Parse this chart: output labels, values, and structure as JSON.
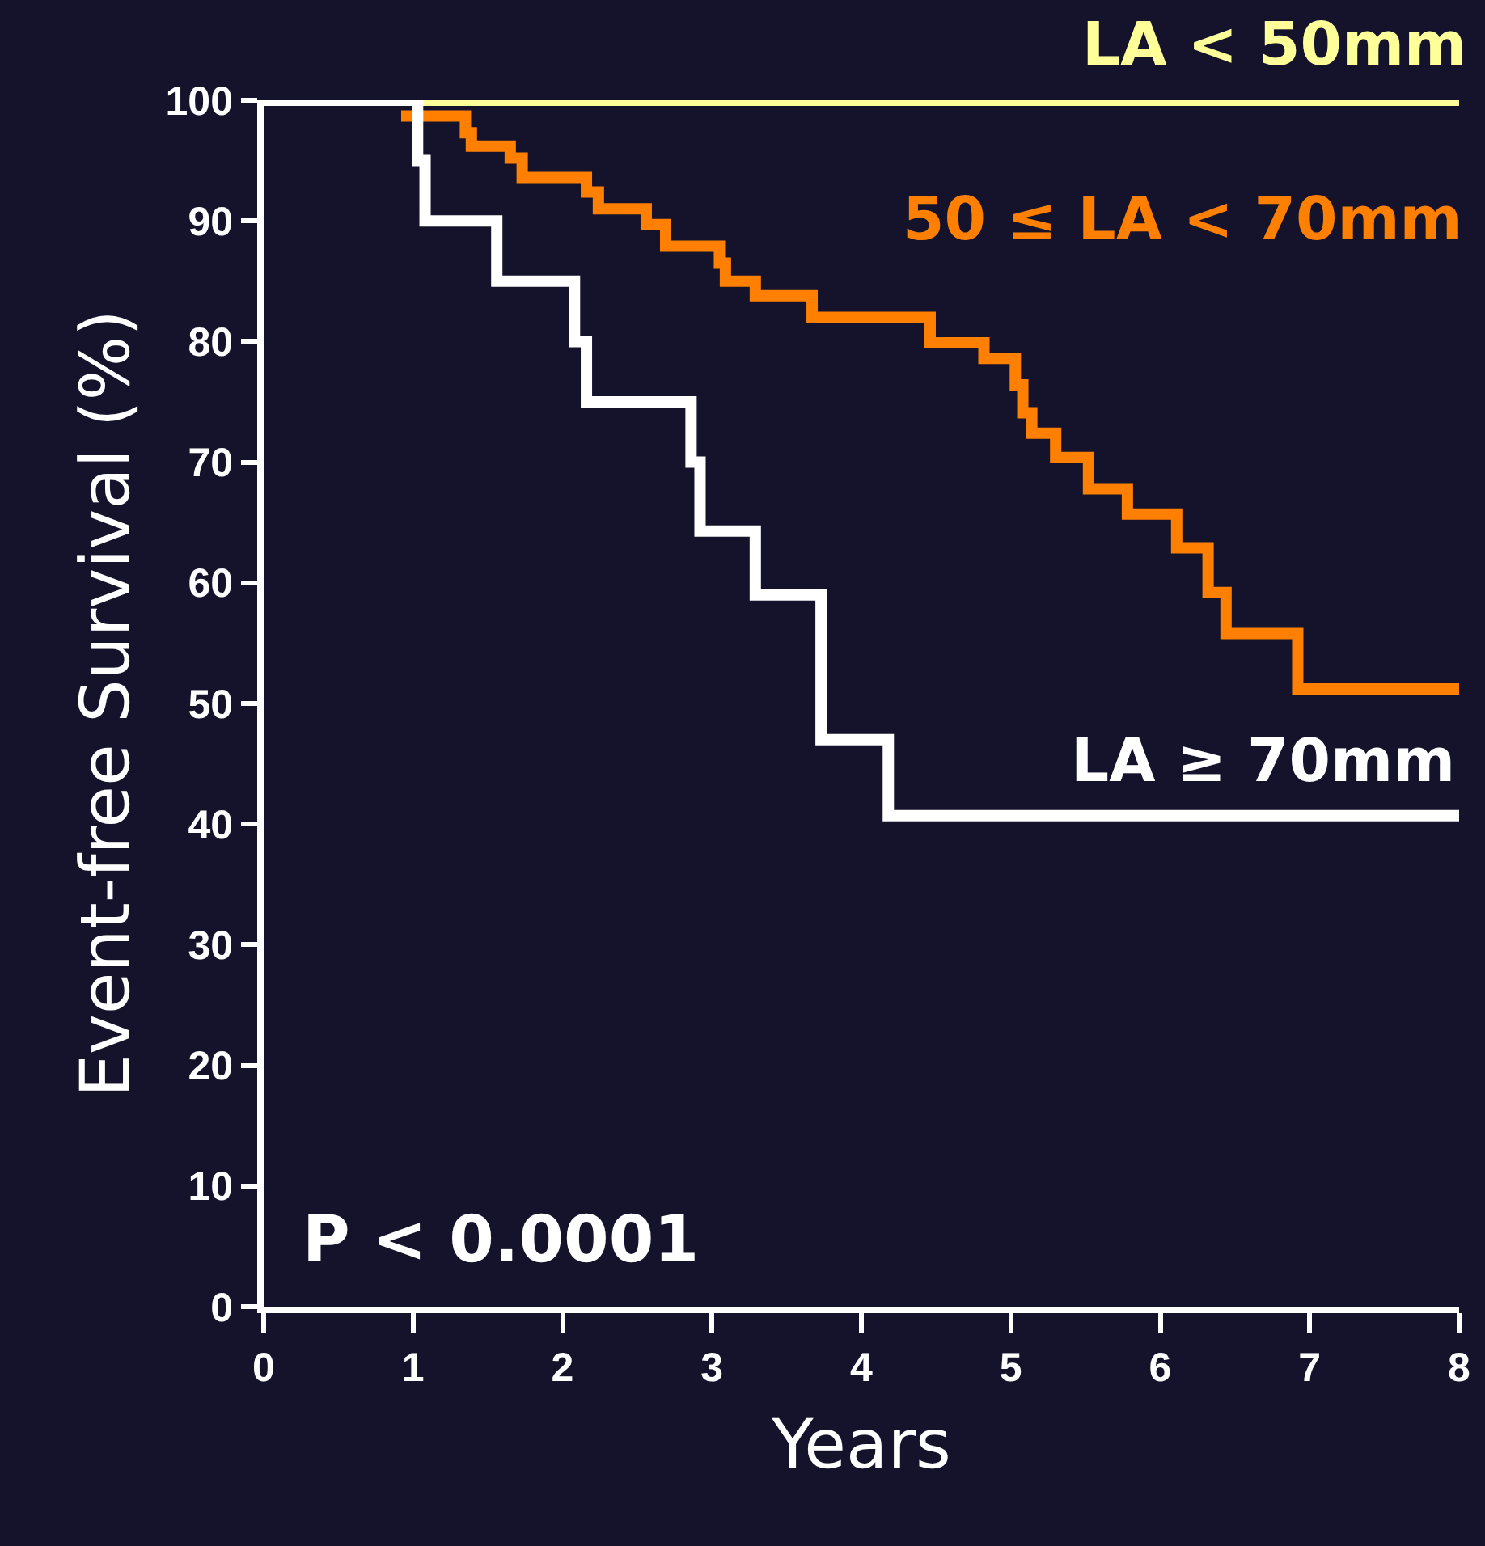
{
  "chart_data": {
    "type": "step",
    "xlabel": "Years",
    "ylabel": "Event-free Survival (%)",
    "xlim": [
      0,
      8
    ],
    "ylim": [
      0,
      100
    ],
    "xticks": [
      0,
      1,
      2,
      3,
      4,
      5,
      6,
      7,
      8
    ],
    "yticks": [
      0,
      10,
      20,
      30,
      40,
      50,
      60,
      70,
      80,
      90,
      100
    ],
    "grid": false,
    "legend": false,
    "marker": "none",
    "line_style": "solid",
    "annotations": [
      "P < 0.0001"
    ],
    "series": [
      {
        "name": "LA < 50mm",
        "color": "#ffff99",
        "x": [
          0,
          8
        ],
        "values": [
          100,
          100
        ]
      },
      {
        "name": "50 ≤ LA < 70mm",
        "color": "#ff8000",
        "x": [
          0.92,
          1.35,
          1.39,
          1.65,
          1.73,
          2.16,
          2.24,
          2.56,
          2.69,
          3.05,
          3.09,
          3.29,
          3.67,
          4.46,
          4.82,
          5.03,
          5.08,
          5.14,
          5.3,
          5.52,
          5.78,
          6.11,
          6.32,
          6.44,
          6.92,
          8
        ],
        "values": [
          98.7,
          97.3,
          96.2,
          95.2,
          93.6,
          92.4,
          91,
          89.7,
          87.9,
          86.5,
          85,
          83.8,
          82,
          79.9,
          78.6,
          76.4,
          74.1,
          72.4,
          70.4,
          67.8,
          65.7,
          62.9,
          59.2,
          55.8,
          51.2,
          51.2
        ]
      },
      {
        "name": "LA ≥ 70mm",
        "color": "#ffffff",
        "x": [
          0,
          1.03,
          1.08,
          1.56,
          2.08,
          2.16,
          2.86,
          2.92,
          3.29,
          3.73,
          4.18,
          8
        ],
        "values": [
          100,
          95,
          90,
          85,
          80,
          75,
          70,
          64.3,
          59,
          47,
          40.7,
          40.7
        ]
      }
    ]
  }
}
